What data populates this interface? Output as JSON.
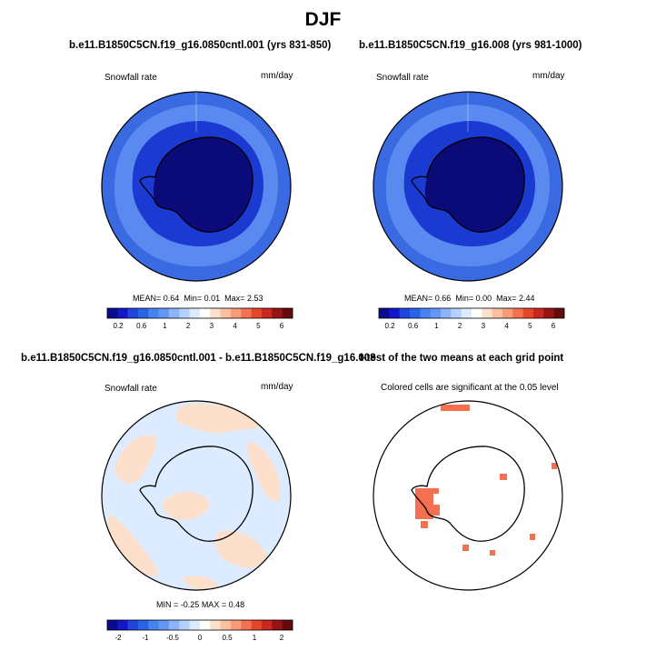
{
  "figure": {
    "title": "DJF"
  },
  "panels": [
    {
      "title": "b.e11.B1850C5CN.f19_g16.0850cntl.001 (yrs 831-850)",
      "variable_label": "Snowfall rate",
      "units_label": "mm/day",
      "stats": {
        "mean_label": "MEAN=",
        "mean": "0.64",
        "min_label": "Min=",
        "min": "0.01",
        "max_label": "Max=",
        "max": "2.53"
      }
    },
    {
      "title": "b.e11.B1850C5CN.f19_g16.008 (yrs 981-1000)",
      "variable_label": "Snowfall rate",
      "units_label": "mm/day",
      "stats": {
        "mean_label": "MEAN=",
        "mean": "0.66",
        "min_label": "Min=",
        "min": "0.00",
        "max_label": "Max=",
        "max": "2.44"
      }
    },
    {
      "title": "b.e11.B1850C5CN.f19_g16.0850cntl.001 - b.e11.B1850C5CN.f19_g16.008",
      "variable_label": "Snowfall rate",
      "units_label": "mm/day",
      "stats": {
        "min_label": "MIN =",
        "min": "-0.25",
        "max_label": "MAX =",
        "max": "0.48"
      }
    },
    {
      "title": "t-test of the two means at each grid point",
      "subtitle": "Colored cells are significant at the 0.05 level"
    }
  ],
  "colorbars": {
    "absolute": {
      "colors": [
        "#0a0a8c",
        "#1414c8",
        "#1e46dc",
        "#2864e6",
        "#4682f0",
        "#6496f5",
        "#8cb4fa",
        "#b4d2ff",
        "#dcebff",
        "#ffffff",
        "#fde0cc",
        "#fcbfa0",
        "#fa9b78",
        "#f57050",
        "#e64628",
        "#c8281e",
        "#961414",
        "#640a0a"
      ],
      "tick_labels": [
        "0.2",
        "0.6",
        "1",
        "2",
        "3",
        "4",
        "5",
        "6"
      ]
    },
    "difference": {
      "colors": [
        "#0a0a8c",
        "#1414c8",
        "#1e46dc",
        "#2864e6",
        "#4682f0",
        "#6496f5",
        "#8cb4fa",
        "#b4d2ff",
        "#dcebff",
        "#ffffff",
        "#fde0cc",
        "#fcbfa0",
        "#fa9b78",
        "#f57050",
        "#e64628",
        "#c8281e",
        "#961414",
        "#640a0a"
      ],
      "tick_labels": [
        "-2",
        "-1",
        "-0.5",
        "0",
        "0.5",
        "1",
        "2"
      ]
    }
  },
  "map_colors": {
    "ocean_far": "#3a6ae2",
    "ocean_mid": "#5a8af0",
    "coast_band": "#1a3ad2",
    "interior": "#0a0a78",
    "diff_negative": "#dcebff",
    "diff_positive": "#fde0cc",
    "significant": "#f57050"
  }
}
